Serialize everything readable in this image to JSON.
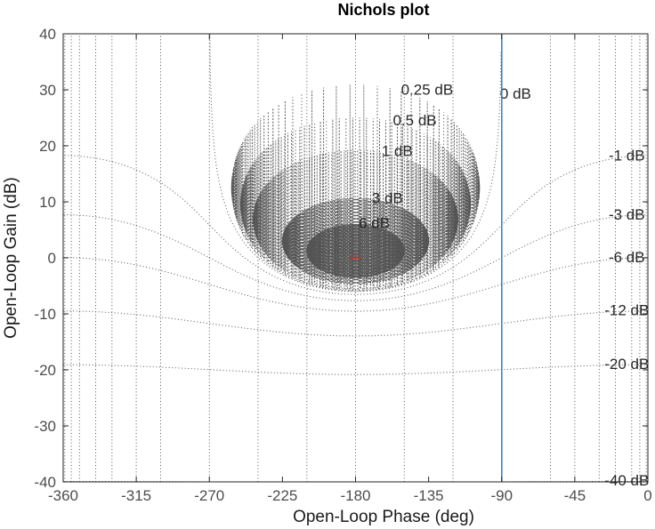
{
  "chart_data": {
    "type": "line",
    "title": "Nichols plot",
    "xlabel": "Open-Loop Phase (deg)",
    "ylabel": "Open-Loop Gain (dB)",
    "xlim": [
      -360,
      0
    ],
    "ylim": [
      -40,
      40
    ],
    "xticks": [
      -360,
      -315,
      -270,
      -225,
      -180,
      -135,
      -90,
      -45,
      0
    ],
    "yticks": [
      -40,
      -30,
      -20,
      -10,
      0,
      10,
      20,
      30,
      40
    ],
    "xtick_labels": [
      "-360",
      "-315",
      "-270",
      "-225",
      "-180",
      "-135",
      "-90",
      "-45",
      "0"
    ],
    "ytick_labels": [
      "-40",
      "-30",
      "-20",
      "-10",
      "0",
      "10",
      "20",
      "30",
      "40"
    ],
    "grid": "nichols",
    "nichols_grid": {
      "closed_loop_gain_labels": [
        "6 dB",
        "3 dB",
        "1 dB",
        "0.5 dB",
        "0.25 dB",
        "0 dB",
        "-1 dB",
        "-3 dB",
        "-6 dB",
        "-12 dB",
        "-20 dB",
        "-40 dB"
      ],
      "gain_contours_db": [
        6,
        3,
        1,
        0.5,
        0.25,
        0,
        -1,
        -3,
        -6,
        -12,
        -20,
        -40
      ],
      "phase_contours_deg": [
        -1,
        -5,
        -10,
        -20,
        -30,
        -45,
        -60,
        -90,
        -120,
        -150,
        -180,
        -210,
        -240,
        -270,
        -300,
        -315,
        -330,
        -340,
        -350,
        -355,
        -359
      ],
      "label_phase_deg": [
        -178,
        -170,
        -164,
        -157,
        -152,
        -91,
        -13,
        -13,
        -13,
        -13,
        -13,
        -13
      ]
    },
    "critical_point": {
      "x": -180,
      "y": 0,
      "marker": "+",
      "color": "#e8261a"
    },
    "series": [
      {
        "x": [
          -90,
          -90
        ],
        "y": [
          -40,
          40
        ],
        "color": "#2f7fbf"
      }
    ],
    "colors": {
      "series": "#2f7fbf",
      "grid": "#555555",
      "critical_point": "#e8261a",
      "axis": "#262626"
    }
  }
}
